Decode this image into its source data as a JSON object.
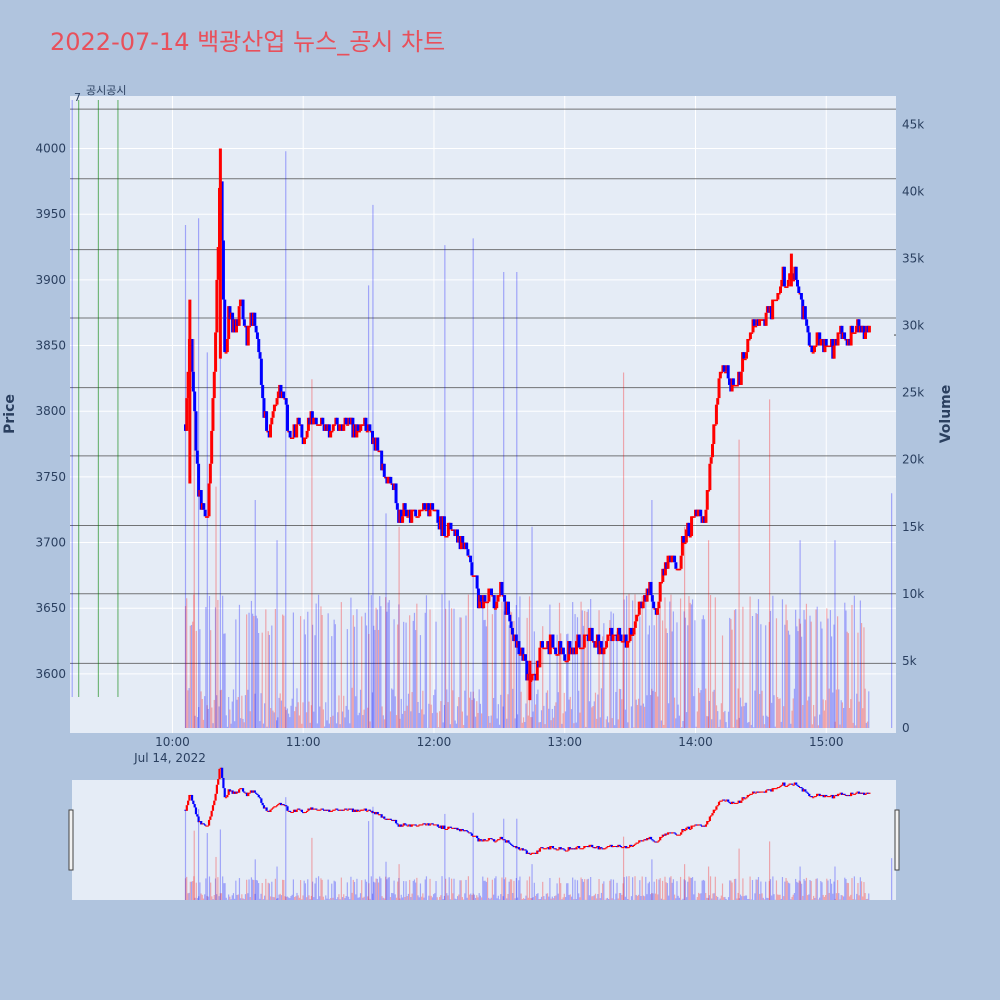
{
  "title": "2022-07-14 백광산업 뉴스_공시 차트",
  "colors": {
    "background": "#b0c4de",
    "plot_bg": "#e5ecf6",
    "grid": "#ffffff",
    "up": "#ff0000",
    "down": "#0000ff",
    "title": "#e8505b",
    "hline": "#555555",
    "news_line": "#008000"
  },
  "annotations": {
    "top_left_number": "7",
    "news_label": "공시공시"
  },
  "chart_data": {
    "type": "candlestick",
    "xaxis": {
      "date_label": "Jul 14, 2022",
      "range": [
        "09:13",
        "15:32"
      ],
      "ticks": [
        "10:00",
        "11:00",
        "12:00",
        "13:00",
        "14:00",
        "15:00"
      ]
    },
    "yaxis_price": {
      "title": "Price",
      "range": [
        3555,
        4040
      ],
      "ticks": [
        3600,
        3650,
        3700,
        3750,
        3800,
        3850,
        3900,
        3950,
        4000
      ]
    },
    "yaxis_volume": {
      "title": "Volume",
      "range": [
        0,
        46000
      ],
      "ticks": [
        0,
        5000,
        10000,
        15000,
        20000,
        25000,
        30000,
        35000,
        40000,
        45000
      ],
      "tick_labels": [
        "0",
        "5k",
        "10k",
        "15k",
        "20k",
        "25k",
        "30k",
        "35k",
        "40k",
        "45k"
      ]
    },
    "horizontal_levels": [
      4030,
      3977,
      3923,
      3871,
      3818,
      3766,
      3713,
      3661,
      3608
    ],
    "news_times": [
      "09:17",
      "09:26",
      "09:35"
    ],
    "price_path": [
      [
        "10:06",
        3790
      ],
      [
        "10:08",
        3860
      ],
      [
        "10:10",
        3800
      ],
      [
        "10:12",
        3740
      ],
      [
        "10:14",
        3725
      ],
      [
        "10:16",
        3720
      ],
      [
        "10:18",
        3780
      ],
      [
        "10:20",
        3870
      ],
      [
        "10:22",
        3990
      ],
      [
        "10:24",
        3840
      ],
      [
        "10:26",
        3880
      ],
      [
        "10:28",
        3860
      ],
      [
        "10:30",
        3870
      ],
      [
        "10:32",
        3880
      ],
      [
        "10:34",
        3855
      ],
      [
        "10:36",
        3875
      ],
      [
        "10:38",
        3865
      ],
      [
        "10:40",
        3840
      ],
      [
        "10:42",
        3800
      ],
      [
        "10:44",
        3780
      ],
      [
        "10:46",
        3800
      ],
      [
        "10:48",
        3810
      ],
      [
        "10:50",
        3815
      ],
      [
        "10:52",
        3800
      ],
      [
        "10:54",
        3780
      ],
      [
        "10:56",
        3785
      ],
      [
        "10:58",
        3790
      ],
      [
        "11:00",
        3780
      ],
      [
        "11:04",
        3795
      ],
      [
        "11:08",
        3790
      ],
      [
        "11:12",
        3785
      ],
      [
        "11:16",
        3790
      ],
      [
        "11:20",
        3790
      ],
      [
        "11:24",
        3785
      ],
      [
        "11:28",
        3790
      ],
      [
        "11:32",
        3780
      ],
      [
        "11:34",
        3770
      ],
      [
        "11:36",
        3760
      ],
      [
        "11:38",
        3745
      ],
      [
        "11:40",
        3750
      ],
      [
        "11:42",
        3740
      ],
      [
        "11:44",
        3720
      ],
      [
        "11:46",
        3725
      ],
      [
        "11:50",
        3720
      ],
      [
        "11:54",
        3730
      ],
      [
        "11:58",
        3725
      ],
      [
        "12:02",
        3715
      ],
      [
        "12:06",
        3710
      ],
      [
        "12:10",
        3705
      ],
      [
        "12:14",
        3695
      ],
      [
        "12:18",
        3680
      ],
      [
        "12:20",
        3660
      ],
      [
        "12:22",
        3650
      ],
      [
        "12:24",
        3660
      ],
      [
        "12:26",
        3665
      ],
      [
        "12:28",
        3655
      ],
      [
        "12:30",
        3665
      ],
      [
        "12:32",
        3660
      ],
      [
        "12:34",
        3645
      ],
      [
        "12:36",
        3630
      ],
      [
        "12:38",
        3625
      ],
      [
        "12:40",
        3615
      ],
      [
        "12:42",
        3605
      ],
      [
        "12:44",
        3590
      ],
      [
        "12:46",
        3595
      ],
      [
        "12:48",
        3610
      ],
      [
        "12:50",
        3625
      ],
      [
        "12:52",
        3620
      ],
      [
        "12:54",
        3625
      ],
      [
        "12:56",
        3620
      ],
      [
        "12:58",
        3620
      ],
      [
        "13:00",
        3615
      ],
      [
        "13:04",
        3620
      ],
      [
        "13:08",
        3625
      ],
      [
        "13:12",
        3630
      ],
      [
        "13:16",
        3620
      ],
      [
        "13:20",
        3625
      ],
      [
        "13:24",
        3630
      ],
      [
        "13:28",
        3625
      ],
      [
        "13:30",
        3630
      ],
      [
        "13:32",
        3640
      ],
      [
        "13:34",
        3650
      ],
      [
        "13:36",
        3655
      ],
      [
        "13:38",
        3665
      ],
      [
        "13:40",
        3660
      ],
      [
        "13:42",
        3650
      ],
      [
        "13:44",
        3665
      ],
      [
        "13:46",
        3680
      ],
      [
        "13:48",
        3685
      ],
      [
        "13:50",
        3690
      ],
      [
        "13:52",
        3680
      ],
      [
        "13:54",
        3700
      ],
      [
        "13:56",
        3705
      ],
      [
        "13:58",
        3715
      ],
      [
        "14:00",
        3720
      ],
      [
        "14:02",
        3720
      ],
      [
        "14:04",
        3715
      ],
      [
        "14:06",
        3740
      ],
      [
        "14:08",
        3780
      ],
      [
        "14:10",
        3810
      ],
      [
        "14:12",
        3830
      ],
      [
        "14:14",
        3835
      ],
      [
        "14:16",
        3820
      ],
      [
        "14:18",
        3815
      ],
      [
        "14:20",
        3825
      ],
      [
        "14:22",
        3840
      ],
      [
        "14:24",
        3855
      ],
      [
        "14:26",
        3865
      ],
      [
        "14:28",
        3870
      ],
      [
        "14:30",
        3865
      ],
      [
        "14:32",
        3870
      ],
      [
        "14:34",
        3875
      ],
      [
        "14:36",
        3880
      ],
      [
        "14:38",
        3890
      ],
      [
        "14:40",
        3905
      ],
      [
        "14:42",
        3890
      ],
      [
        "14:44",
        3910
      ],
      [
        "14:46",
        3900
      ],
      [
        "14:48",
        3885
      ],
      [
        "14:50",
        3870
      ],
      [
        "14:52",
        3855
      ],
      [
        "14:54",
        3845
      ],
      [
        "14:56",
        3860
      ],
      [
        "14:58",
        3850
      ],
      [
        "15:00",
        3855
      ],
      [
        "15:02",
        3845
      ],
      [
        "15:04",
        3850
      ],
      [
        "15:06",
        3860
      ],
      [
        "15:08",
        3860
      ],
      [
        "15:10",
        3855
      ],
      [
        "15:12",
        3860
      ],
      [
        "15:14",
        3865
      ],
      [
        "15:16",
        3858
      ],
      [
        "15:18",
        3860
      ],
      [
        "15:20",
        3858
      ]
    ],
    "volume_spikes": [
      [
        "10:06",
        37500,
        "down"
      ],
      [
        "10:10",
        29000,
        "up"
      ],
      [
        "10:12",
        38000,
        "down"
      ],
      [
        "10:16",
        28000,
        "down"
      ],
      [
        "10:20",
        18000,
        "up"
      ],
      [
        "10:22",
        29500,
        "down"
      ],
      [
        "10:38",
        17000,
        "down"
      ],
      [
        "10:48",
        14000,
        "down"
      ],
      [
        "10:52",
        43000,
        "down"
      ],
      [
        "11:04",
        26000,
        "up"
      ],
      [
        "11:30",
        33000,
        "down"
      ],
      [
        "11:32",
        39000,
        "down"
      ],
      [
        "11:38",
        16000,
        "down"
      ],
      [
        "11:44",
        15000,
        "up"
      ],
      [
        "12:05",
        36000,
        "down"
      ],
      [
        "12:18",
        36500,
        "down"
      ],
      [
        "12:32",
        34000,
        "down"
      ],
      [
        "12:38",
        34000,
        "down"
      ],
      [
        "12:45",
        15000,
        "down"
      ],
      [
        "13:27",
        26500,
        "up"
      ],
      [
        "13:40",
        17000,
        "down"
      ],
      [
        "13:55",
        15000,
        "up"
      ],
      [
        "14:06",
        14000,
        "up"
      ],
      [
        "14:20",
        21500,
        "up"
      ],
      [
        "14:34",
        24500,
        "up"
      ],
      [
        "14:48",
        14000,
        "down"
      ],
      [
        "15:04",
        14000,
        "down"
      ],
      [
        "15:30",
        17500,
        "down"
      ]
    ],
    "last_price": 3858
  }
}
